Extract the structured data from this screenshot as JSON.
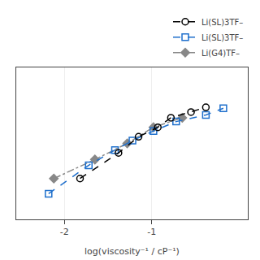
{
  "chart_data": {
    "type": "line",
    "xlabel": "log(viscosity⁻¹ / cP⁻¹)",
    "series": [
      {
        "name": "Li(SL)3TF–",
        "color": "#000000",
        "marker": "circle-open",
        "line_style": "dash",
        "x": [
          -1.82,
          -1.38,
          -1.15,
          -0.93,
          -0.78,
          -0.55,
          -0.38
        ],
        "values": [
          -2.72,
          -2.45,
          -2.28,
          -2.18,
          -2.08,
          -2.02,
          -1.97
        ]
      },
      {
        "name": "Li(SL)3TF–",
        "color": "#1e6fcc",
        "marker": "square-open",
        "line_style": "dash",
        "x": [
          -2.18,
          -1.72,
          -1.42,
          -1.22,
          -0.98,
          -0.72,
          -0.38,
          -0.18
        ],
        "values": [
          -2.88,
          -2.58,
          -2.42,
          -2.32,
          -2.22,
          -2.12,
          -2.05,
          -1.98
        ]
      },
      {
        "name": "Li(G4)TF–",
        "color": "#888888",
        "marker": "diamond",
        "line_style": "dashdot",
        "x": [
          -2.12,
          -1.65,
          -1.28,
          -0.98,
          -0.65
        ],
        "values": [
          -2.72,
          -2.52,
          -2.35,
          -2.18,
          -2.08
        ]
      }
    ],
    "xlim": [
      -2.55,
      0.1
    ],
    "ylim": [
      -3.15,
      -1.55
    ],
    "xticks": [
      -2,
      -1
    ],
    "yticks": [],
    "tick_labels": "x",
    "grid": true,
    "legend": "upper right"
  }
}
